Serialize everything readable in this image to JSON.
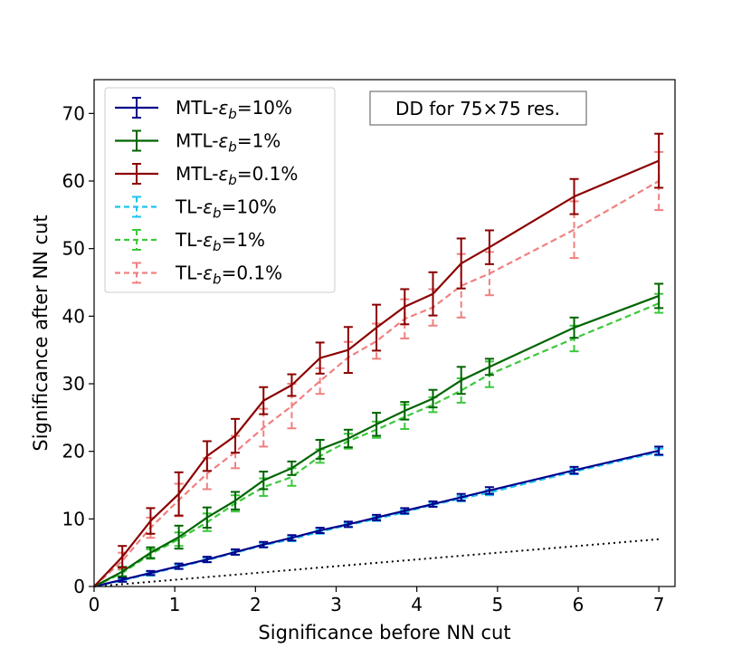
{
  "chart_data": {
    "type": "line",
    "title": "",
    "xlabel": "Significance before NN cut",
    "ylabel": "Significance after NN cut",
    "xlim": [
      0,
      7.2
    ],
    "ylim": [
      0,
      75
    ],
    "x_ticks": [
      "0",
      "1",
      "2",
      "3",
      "4",
      "5",
      "6",
      "7"
    ],
    "y_ticks": [
      "0",
      "10",
      "20",
      "30",
      "40",
      "50",
      "60",
      "70"
    ],
    "grid": false,
    "legend_position": "top-left",
    "annotation": "DD for 75×75 res.",
    "x": [
      0,
      0.35,
      0.7,
      1.05,
      1.4,
      1.75,
      2.1,
      2.45,
      2.8,
      3.15,
      3.5,
      3.85,
      4.2,
      4.55,
      4.9,
      5.95,
      7.0
    ],
    "series": [
      {
        "name": "MTL-εb=10%",
        "label_prefix": "MTL-",
        "label_value": "=10%",
        "color": "#00008b",
        "style": "solid",
        "values": [
          0,
          1.0,
          2.0,
          3.0,
          4.0,
          5.1,
          6.2,
          7.2,
          8.3,
          9.2,
          10.2,
          11.2,
          12.2,
          13.2,
          14.2,
          17.2,
          20.1
        ],
        "errors": [
          0,
          0.3,
          0.3,
          0.4,
          0.4,
          0.4,
          0.4,
          0.4,
          0.4,
          0.4,
          0.4,
          0.4,
          0.4,
          0.5,
          0.5,
          0.5,
          0.6
        ]
      },
      {
        "name": "MTL-εb=1%",
        "label_prefix": "MTL-",
        "label_value": "=1%",
        "color": "#006400",
        "style": "solid",
        "values": [
          0,
          2.2,
          5.0,
          7.3,
          10.2,
          12.7,
          15.7,
          17.5,
          20.3,
          21.9,
          24.0,
          26.0,
          27.8,
          30.5,
          32.5,
          38.3,
          43.0
        ],
        "errors": [
          0,
          0.7,
          0.8,
          1.7,
          1.5,
          1.3,
          1.3,
          1.0,
          1.4,
          1.3,
          1.7,
          1.3,
          1.3,
          2.0,
          1.2,
          1.5,
          1.8
        ]
      },
      {
        "name": "MTL-εb=0.1%",
        "label_prefix": "MTL-",
        "label_value": "=0.1%",
        "color": "#8b0000",
        "style": "solid",
        "values": [
          0,
          4.4,
          9.7,
          13.7,
          19.3,
          22.3,
          27.5,
          29.8,
          33.8,
          35.0,
          38.3,
          41.4,
          43.3,
          47.8,
          50.2,
          57.7,
          63.0
        ],
        "errors": [
          0,
          1.6,
          1.9,
          3.2,
          2.2,
          2.5,
          2.0,
          1.6,
          2.3,
          3.4,
          3.4,
          2.6,
          3.2,
          3.7,
          2.5,
          2.6,
          4.0
        ]
      },
      {
        "name": "TL-εb=10%",
        "label_prefix": "TL-",
        "label_value": "=10%",
        "color": "#1ec3f0",
        "style": "dashed",
        "values": [
          0,
          0.9,
          1.9,
          2.9,
          3.9,
          5.0,
          6.1,
          7.0,
          8.1,
          9.1,
          10.0,
          11.0,
          12.1,
          13.0,
          13.9,
          17.0,
          19.9
        ],
        "errors": [
          0,
          0.2,
          0.3,
          0.3,
          0.3,
          0.3,
          0.3,
          0.3,
          0.3,
          0.3,
          0.3,
          0.3,
          0.3,
          0.4,
          0.4,
          0.4,
          0.5
        ]
      },
      {
        "name": "TL-εb=1%",
        "label_prefix": "TL-",
        "label_value": "=1%",
        "color": "#3cc83c",
        "style": "dashed",
        "values": [
          0,
          2.0,
          4.8,
          7.0,
          9.5,
          12.3,
          14.7,
          16.2,
          19.3,
          21.5,
          23.2,
          25.1,
          26.9,
          29.0,
          31.4,
          36.7,
          41.9
        ],
        "errors": [
          0,
          0.5,
          0.7,
          1.0,
          1.3,
          1.2,
          1.3,
          1.3,
          1.0,
          1.1,
          1.2,
          1.8,
          1.1,
          1.8,
          1.9,
          1.9,
          1.4
        ]
      },
      {
        "name": "TL-εb=0.1%",
        "label_prefix": "TL-",
        "label_value": "=0.1%",
        "color": "#f08080",
        "style": "dashed",
        "values": [
          0,
          3.8,
          8.7,
          12.8,
          16.7,
          19.9,
          23.5,
          26.7,
          30.4,
          33.9,
          36.3,
          39.6,
          41.3,
          44.5,
          46.3,
          52.8,
          60.0
        ],
        "errors": [
          0,
          1.2,
          1.5,
          2.4,
          2.3,
          2.4,
          2.8,
          3.3,
          1.9,
          2.3,
          2.6,
          2.9,
          2.7,
          4.7,
          3.2,
          4.2,
          4.3
        ]
      }
    ],
    "reference_line": {
      "name": "y=x",
      "style": "dotted",
      "color": "#000000",
      "x": [
        0,
        7
      ],
      "values": [
        0,
        7
      ]
    }
  }
}
